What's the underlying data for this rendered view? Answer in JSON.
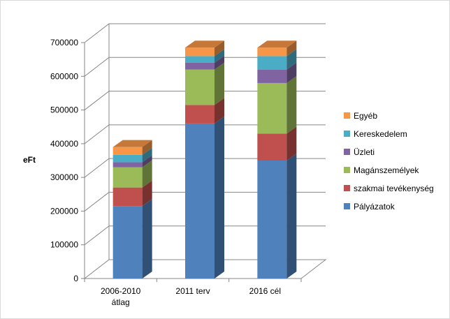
{
  "chart_data": {
    "type": "bar",
    "stacked": true,
    "three_d": true,
    "categories": [
      "2006-2010 átlag",
      "2011 terv",
      "2016 cél"
    ],
    "category_lines": [
      [
        "2006-2010",
        "átlag"
      ],
      [
        "2011 terv"
      ],
      [
        "2016 cél"
      ]
    ],
    "ylabel": "eFt",
    "xlabel": "",
    "title": "",
    "ylim": [
      0,
      700000
    ],
    "yticks": [
      0,
      100000,
      200000,
      300000,
      400000,
      500000,
      600000,
      700000
    ],
    "ytick_labels": [
      "0",
      "100000",
      "200000",
      "300000",
      "400000",
      "500000",
      "600000",
      "700000"
    ],
    "grid": true,
    "legend_position": "right",
    "series": [
      {
        "name": "Pályázatok",
        "color": "#4f81bd",
        "values": [
          215000,
          460000,
          350000
        ]
      },
      {
        "name": "szakmai tevékenység",
        "color": "#c0504d",
        "values": [
          55000,
          55000,
          80000
        ]
      },
      {
        "name": "Magánszemélyek",
        "color": "#9bbb59",
        "values": [
          60000,
          105000,
          150000
        ]
      },
      {
        "name": "Üzleti",
        "color": "#8064a2",
        "values": [
          15000,
          20000,
          40000
        ]
      },
      {
        "name": "Kereskedelem",
        "color": "#4bacc6",
        "values": [
          22000,
          20000,
          40000
        ]
      },
      {
        "name": "Egyéb",
        "color": "#f79646",
        "values": [
          23000,
          25000,
          25000
        ]
      }
    ]
  }
}
